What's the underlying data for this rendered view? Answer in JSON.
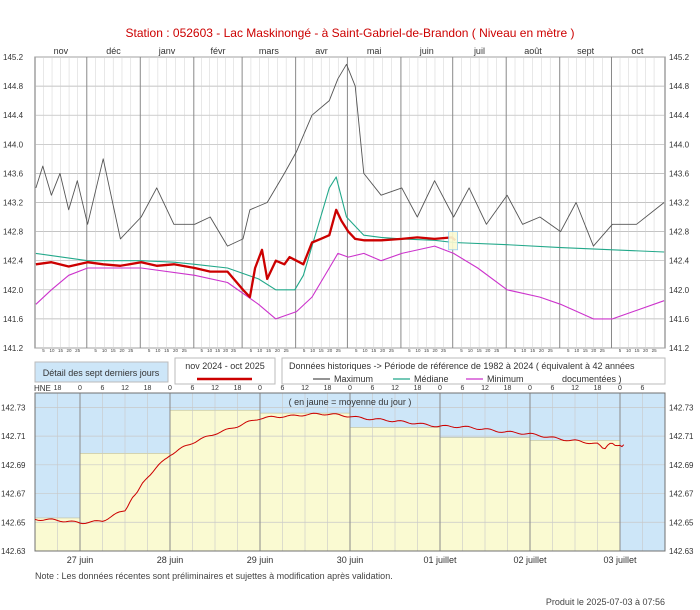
{
  "header": {
    "title": "Station : 052603      -   Lac Maskinongé - à Saint-Gabriel-de-Brandon   ( Niveau en mètre )",
    "produced": "Produit le 2025-07-03 à 07:56",
    "note": "Note : Les données récentes sont préliminaires et sujettes à modification après validation."
  },
  "legend": {
    "detail_label": "Détail des sept derniers jours",
    "period_label": "nov 2024 - oct 2025",
    "historical_label": "Données historiques -> Période de référence  de 1982 à 2024   ( équivalent à 42 années",
    "historical_label2": "documentées )",
    "maximum": "Maximum",
    "median": "Médiane",
    "minimum": "Minimum",
    "daily_mean_note": "( en jaune = moyenne du jour )",
    "hne": "HNE"
  },
  "colors": {
    "current": "#cc0000",
    "maximum": "#555555",
    "median": "#22a88a",
    "minimum": "#cc33cc",
    "grid": "#909090",
    "sky": "#cde6f8",
    "daily_mean": "#fafad2"
  },
  "chart_data": [
    {
      "type": "line",
      "title": "",
      "x_unit": "month",
      "xlim": [
        "2024-11-01",
        "2025-10-31"
      ],
      "ylim": [
        141.2,
        145.2
      ],
      "y_ticks": [
        "145.2",
        "144.8",
        "144.4",
        "144.0",
        "143.6",
        "143.2",
        "142.8",
        "142.4",
        "142.0",
        "141.6",
        "141.2"
      ],
      "months": [
        "nov",
        "déc",
        "janv",
        "févr",
        "mars",
        "avr",
        "mai",
        "juin",
        "juil",
        "août",
        "sept",
        "oct"
      ],
      "day_ticks": "5 10 15 20 25",
      "grid": true,
      "series": [
        {
          "name": "Maximum",
          "x": [
            "2024-11-01",
            "2024-11-05",
            "2024-11-10",
            "2024-11-15",
            "2024-11-20",
            "2024-11-25",
            "2024-12-01",
            "2024-12-10",
            "2024-12-20",
            "2025-01-01",
            "2025-01-10",
            "2025-01-20",
            "2025-02-01",
            "2025-02-10",
            "2025-02-20",
            "2025-03-01",
            "2025-03-05",
            "2025-03-15",
            "2025-03-25",
            "2025-04-01",
            "2025-04-10",
            "2025-04-20",
            "2025-04-25",
            "2025-04-30",
            "2025-05-05",
            "2025-05-10",
            "2025-05-20",
            "2025-06-01",
            "2025-06-10",
            "2025-06-20",
            "2025-07-01",
            "2025-07-10",
            "2025-07-20",
            "2025-08-01",
            "2025-08-10",
            "2025-08-20",
            "2025-09-01",
            "2025-09-10",
            "2025-09-20",
            "2025-10-01",
            "2025-10-15",
            "2025-10-31"
          ],
          "y": [
            143.4,
            143.7,
            143.3,
            143.6,
            143.1,
            143.5,
            142.9,
            143.8,
            142.7,
            143.0,
            143.4,
            142.9,
            142.9,
            143.0,
            142.6,
            142.7,
            143.1,
            143.2,
            143.6,
            143.9,
            144.4,
            144.6,
            144.9,
            145.1,
            144.8,
            143.6,
            143.3,
            143.4,
            143.0,
            143.5,
            143.0,
            143.4,
            142.9,
            143.3,
            142.9,
            143.0,
            142.8,
            143.2,
            142.6,
            142.9,
            142.9,
            143.2
          ]
        },
        {
          "name": "Médiane",
          "x": [
            "2024-11-01",
            "2024-12-01",
            "2025-01-01",
            "2025-01-20",
            "2025-02-01",
            "2025-02-20",
            "2025-03-10",
            "2025-03-20",
            "2025-03-31",
            "2025-04-05",
            "2025-04-10",
            "2025-04-15",
            "2025-04-20",
            "2025-04-24",
            "2025-04-30",
            "2025-05-10",
            "2025-05-20",
            "2025-06-01",
            "2025-06-20",
            "2025-07-01",
            "2025-08-01",
            "2025-09-01",
            "2025-10-01",
            "2025-10-31"
          ],
          "y": [
            142.5,
            142.4,
            142.4,
            142.38,
            142.35,
            142.3,
            142.15,
            142.0,
            142.0,
            142.2,
            142.6,
            143.0,
            143.4,
            143.55,
            143.0,
            142.75,
            142.72,
            142.7,
            142.68,
            142.65,
            142.62,
            142.58,
            142.55,
            142.52
          ]
        },
        {
          "name": "Minimum",
          "x": [
            "2024-11-01",
            "2024-11-10",
            "2024-11-20",
            "2024-12-01",
            "2025-01-01",
            "2025-02-01",
            "2025-02-20",
            "2025-03-10",
            "2025-03-20",
            "2025-04-01",
            "2025-04-10",
            "2025-04-20",
            "2025-04-25",
            "2025-05-01",
            "2025-05-10",
            "2025-05-20",
            "2025-06-01",
            "2025-06-20",
            "2025-07-01",
            "2025-07-15",
            "2025-08-01",
            "2025-08-20",
            "2025-09-01",
            "2025-09-20",
            "2025-10-01",
            "2025-10-31"
          ],
          "y": [
            141.8,
            142.0,
            142.2,
            142.3,
            142.3,
            142.2,
            142.1,
            141.8,
            141.6,
            141.7,
            141.9,
            142.3,
            142.5,
            142.45,
            142.5,
            142.4,
            142.5,
            142.6,
            142.5,
            142.3,
            142.0,
            141.9,
            141.8,
            141.6,
            141.6,
            141.85
          ]
        },
        {
          "name": "2024-2025",
          "x": [
            "2024-11-01",
            "2024-11-10",
            "2024-11-20",
            "2024-12-01",
            "2024-12-10",
            "2024-12-20",
            "2025-01-01",
            "2025-01-10",
            "2025-01-20",
            "2025-02-01",
            "2025-02-10",
            "2025-02-20",
            "2025-03-01",
            "2025-03-05",
            "2025-03-08",
            "2025-03-12",
            "2025-03-15",
            "2025-03-20",
            "2025-03-25",
            "2025-03-28",
            "2025-04-01",
            "2025-04-05",
            "2025-04-10",
            "2025-04-15",
            "2025-04-20",
            "2025-04-24",
            "2025-04-27",
            "2025-05-01",
            "2025-05-05",
            "2025-05-10",
            "2025-05-20",
            "2025-06-01",
            "2025-06-10",
            "2025-06-20",
            "2025-06-30",
            "2025-07-02"
          ],
          "y": [
            142.35,
            142.38,
            142.32,
            142.38,
            142.35,
            142.33,
            142.38,
            142.33,
            142.35,
            142.3,
            142.25,
            142.25,
            142.0,
            141.9,
            142.3,
            142.55,
            142.15,
            142.4,
            142.35,
            142.45,
            142.4,
            142.35,
            142.65,
            142.7,
            142.75,
            143.1,
            142.95,
            142.8,
            142.7,
            142.68,
            142.68,
            142.7,
            142.72,
            142.7,
            142.72,
            142.68
          ]
        }
      ]
    },
    {
      "type": "line",
      "title": "",
      "xlim": [
        "2025-06-26 12:00",
        "2025-07-03 12:00"
      ],
      "ylim": [
        142.63,
        142.74
      ],
      "y_ticks": [
        "142.73",
        "142.71",
        "142.69",
        "142.67",
        "142.65",
        "142.63"
      ],
      "day_labels": [
        "27 juin",
        "28 juin",
        "29 juin",
        "30 juin",
        "01 juillet",
        "02 juillet",
        "03 juillet"
      ],
      "hour_ticks": [
        "6",
        "12",
        "18",
        "0"
      ],
      "daily_mean": [
        142.653,
        142.698,
        142.728,
        142.726,
        142.716,
        142.709,
        142.707
      ],
      "series": [
        {
          "name": "Niveau",
          "x": [
            0,
            6,
            12,
            18,
            24,
            26,
            28,
            30,
            33,
            36,
            42,
            48,
            54,
            60,
            66,
            72,
            78,
            84,
            90,
            96,
            102,
            108,
            114,
            120,
            126,
            132,
            138,
            144,
            150,
            152,
            154,
            156,
            157
          ],
          "y": [
            142.652,
            142.651,
            142.65,
            142.651,
            142.658,
            142.667,
            142.674,
            142.682,
            142.69,
            142.697,
            142.705,
            142.712,
            142.717,
            142.722,
            142.724,
            142.725,
            142.725,
            142.724,
            142.722,
            142.72,
            142.719,
            142.717,
            142.716,
            142.715,
            142.713,
            142.711,
            142.709,
            142.707,
            142.704,
            142.702,
            142.705,
            142.703,
            142.704
          ]
        }
      ]
    }
  ]
}
